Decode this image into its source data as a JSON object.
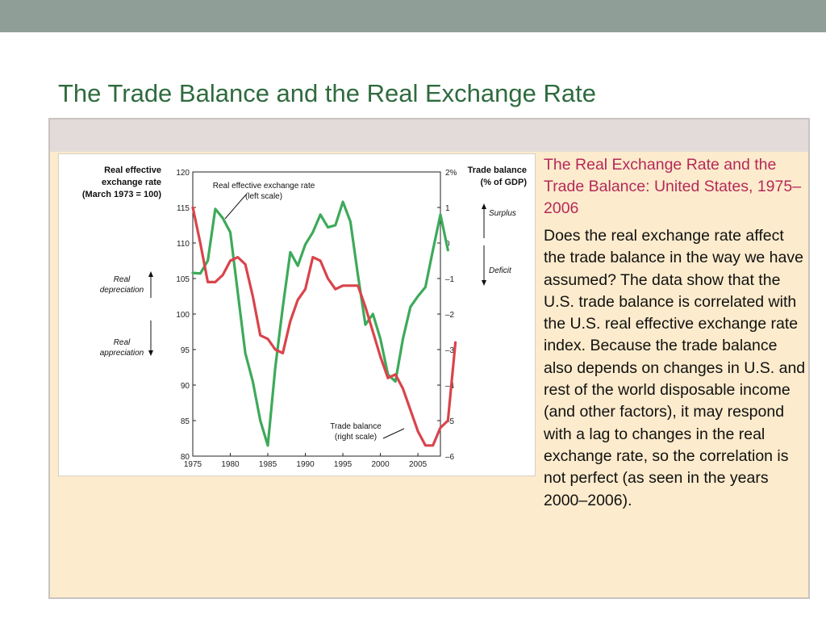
{
  "slide": {
    "title": "The Trade Balance and the Real Exchange Rate",
    "caption": "The Real Exchange Rate and the Trade Balance: United States, 1975–2006",
    "body": "Does the real exchange rate affect the trade balance in the way we have assumed? The data show that the U.S. trade balance is correlated with the U.S. real effective exchange rate index. Because the trade balance also depends on changes in U.S. and rest of the world disposable income (and other factors), it may respond with a lag to changes in the real exchange rate, so the correlation is not perfect (as seen in the years 2000–2006)."
  },
  "colors": {
    "top_bar": "#8f9f97",
    "title": "#2f6b3e",
    "caption": "#b5295a",
    "exchange_rate_line": "#3daa5a",
    "trade_balance_line": "#d9444b"
  },
  "chart_data": {
    "type": "line",
    "left_axis": {
      "title_lines": [
        "Real effective",
        "exchange rate",
        "(March 1973 = 100)"
      ],
      "range": [
        80,
        120
      ],
      "ticks": [
        80,
        85,
        90,
        95,
        100,
        105,
        110,
        115,
        120
      ]
    },
    "right_axis": {
      "title_lines": [
        "Trade balance",
        "(% of GDP)"
      ],
      "range": [
        -6,
        2
      ],
      "ticks": [
        -6,
        -5,
        -4,
        -3,
        -2,
        -1,
        0,
        1,
        2
      ],
      "tick_labels": [
        "–6",
        "–5",
        "–4",
        "–3",
        "–2",
        "–1",
        "0",
        "1",
        "2%"
      ]
    },
    "x_axis": {
      "range": [
        1975,
        2008
      ],
      "ticks": [
        1975,
        1980,
        1985,
        1990,
        1995,
        2000,
        2005
      ]
    },
    "left_annotations": {
      "up_label_lines": [
        "Real",
        "depreciation"
      ],
      "down_label_lines": [
        "Real",
        "appreciation"
      ]
    },
    "right_annotations": {
      "up_label": "Surplus",
      "down_label": "Deficit"
    },
    "series": [
      {
        "name": "Real effective exchange rate",
        "label_lines": [
          "Real effective exchange rate",
          "(left scale)"
        ],
        "axis": "left",
        "points": [
          [
            1975,
            105.8
          ],
          [
            1976,
            105.7
          ],
          [
            1977,
            107.5
          ],
          [
            1978,
            114.8
          ],
          [
            1979,
            113.5
          ],
          [
            1980,
            111.5
          ],
          [
            1981,
            103.0
          ],
          [
            1982,
            94.5
          ],
          [
            1983,
            90.5
          ],
          [
            1984,
            85.0
          ],
          [
            1985,
            81.5
          ],
          [
            1986,
            92.5
          ],
          [
            1987,
            101.0
          ],
          [
            1988,
            108.7
          ],
          [
            1989,
            106.8
          ],
          [
            1990,
            109.8
          ],
          [
            1991,
            111.5
          ],
          [
            1992,
            114.0
          ],
          [
            1993,
            112.2
          ],
          [
            1994,
            112.5
          ],
          [
            1995,
            115.8
          ],
          [
            1996,
            113.0
          ],
          [
            1997,
            105.5
          ],
          [
            1998,
            98.5
          ],
          [
            1999,
            100.0
          ],
          [
            2000,
            96.5
          ],
          [
            2001,
            91.5
          ],
          [
            2002,
            90.5
          ],
          [
            2003,
            96.5
          ],
          [
            2004,
            101.0
          ],
          [
            2005,
            102.5
          ],
          [
            2006,
            103.8
          ],
          [
            2007,
            109.0
          ],
          [
            2008,
            114.0
          ],
          [
            2009,
            109.0
          ]
        ]
      },
      {
        "name": "Trade balance",
        "label_lines": [
          "Trade balance",
          "(right scale)"
        ],
        "axis": "right",
        "points": [
          [
            1975,
            1.0
          ],
          [
            1976,
            0.0
          ],
          [
            1977,
            -1.1
          ],
          [
            1978,
            -1.1
          ],
          [
            1979,
            -0.9
          ],
          [
            1980,
            -0.5
          ],
          [
            1981,
            -0.4
          ],
          [
            1982,
            -0.6
          ],
          [
            1983,
            -1.5
          ],
          [
            1984,
            -2.6
          ],
          [
            1985,
            -2.7
          ],
          [
            1986,
            -3.0
          ],
          [
            1987,
            -3.1
          ],
          [
            1988,
            -2.2
          ],
          [
            1989,
            -1.6
          ],
          [
            1990,
            -1.3
          ],
          [
            1991,
            -0.4
          ],
          [
            1992,
            -0.5
          ],
          [
            1993,
            -1.0
          ],
          [
            1994,
            -1.3
          ],
          [
            1995,
            -1.2
          ],
          [
            1996,
            -1.2
          ],
          [
            1997,
            -1.2
          ],
          [
            1998,
            -1.8
          ],
          [
            1999,
            -2.5
          ],
          [
            2000,
            -3.2
          ],
          [
            2001,
            -3.8
          ],
          [
            2002,
            -3.7
          ],
          [
            2003,
            -4.1
          ],
          [
            2004,
            -4.7
          ],
          [
            2005,
            -5.3
          ],
          [
            2006,
            -5.7
          ],
          [
            2007,
            -5.7
          ],
          [
            2008,
            -5.2
          ],
          [
            2009,
            -5.0
          ],
          [
            2010,
            -2.8
          ]
        ]
      }
    ]
  }
}
